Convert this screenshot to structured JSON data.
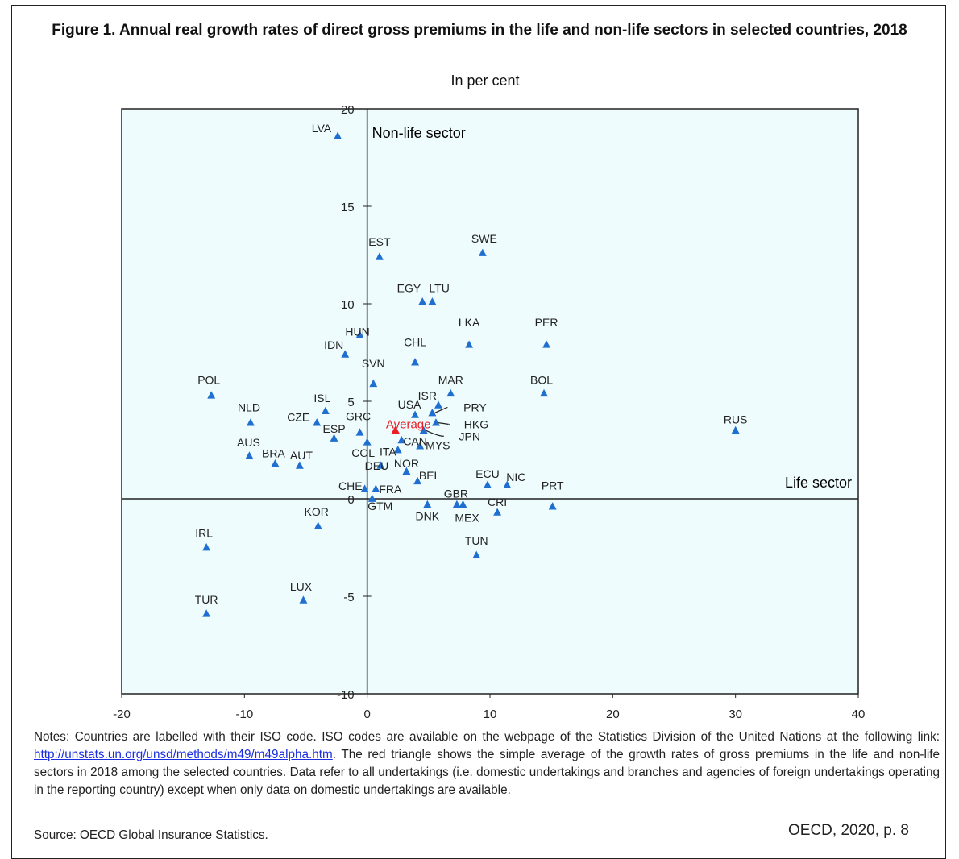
{
  "title": "Figure 1. Annual real growth rates of direct gross premiums in the life and non-life sectors in selected countries, 2018",
  "subtitle": "In per cent",
  "notes": {
    "text_before": "Notes: Countries are labelled with their ISO code. ISO codes are available on the webpage of the Statistics Division of the United Nations at the following link: ",
    "link": "http://unstats.un.org/unsd/methods/m49/m49alpha.htm",
    "text_after": ". The red triangle shows the simple average of the growth rates of gross premiums in the life and non-life sectors in 2018 among the selected countries. Data refer to all undertakings (i.e. domestic undertakings and branches and agencies of foreign undertakings operating in the reporting country) except when only data on domestic undertakings are available."
  },
  "source": "Source: OECD Global Insurance Statistics.",
  "citation": "OECD, 2020, p. 8",
  "colors": {
    "point": "#1f6fd1",
    "average": "#e8202a",
    "plot_bg": "#eefcfd",
    "axis": "#222222"
  },
  "chart_data": {
    "type": "scatter",
    "xlabel": "Life sector",
    "ylabel": "Non-life sector",
    "xlim": [
      -20,
      40
    ],
    "ylim": [
      -10,
      20
    ],
    "x_ticks": [
      "-20",
      "-10",
      "0",
      "10",
      "20",
      "30",
      "40"
    ],
    "y_ticks": [
      "-10",
      "-5",
      "0",
      "5",
      "10",
      "15",
      "20"
    ],
    "grid": false,
    "points": [
      {
        "label": "LVA",
        "x": -2.4,
        "y": 18.6
      },
      {
        "label": "EST",
        "x": 1.0,
        "y": 12.4
      },
      {
        "label": "SWE",
        "x": 9.4,
        "y": 12.6
      },
      {
        "label": "EGY",
        "x": 4.5,
        "y": 10.1
      },
      {
        "label": "LTU",
        "x": 5.3,
        "y": 10.1
      },
      {
        "label": "HUN",
        "x": -0.6,
        "y": 8.4
      },
      {
        "label": "IDN",
        "x": -1.8,
        "y": 7.4
      },
      {
        "label": "LKA",
        "x": 8.3,
        "y": 7.9
      },
      {
        "label": "PER",
        "x": 14.6,
        "y": 7.9
      },
      {
        "label": "CHL",
        "x": 3.9,
        "y": 7.0
      },
      {
        "label": "SVN",
        "x": 0.5,
        "y": 5.9
      },
      {
        "label": "MAR",
        "x": 6.8,
        "y": 5.4
      },
      {
        "label": "BOL",
        "x": 14.4,
        "y": 5.4
      },
      {
        "label": "POL",
        "x": -12.7,
        "y": 5.3
      },
      {
        "label": "ISR",
        "x": 5.8,
        "y": 4.8
      },
      {
        "label": "ISL",
        "x": -3.4,
        "y": 4.5
      },
      {
        "label": "USA",
        "x": 3.9,
        "y": 4.3
      },
      {
        "label": "PRY",
        "x": 5.3,
        "y": 4.4
      },
      {
        "label": "HKG",
        "x": 5.6,
        "y": 3.9
      },
      {
        "label": "NLD",
        "x": -9.5,
        "y": 3.9
      },
      {
        "label": "CZE",
        "x": -4.1,
        "y": 3.9
      },
      {
        "label": "RUS",
        "x": 30.0,
        "y": 3.5
      },
      {
        "label": "GRC",
        "x": -0.6,
        "y": 3.4
      },
      {
        "label": "ESP",
        "x": -2.7,
        "y": 3.1
      },
      {
        "label": "JPN",
        "x": 4.6,
        "y": 3.5
      },
      {
        "label": "CAN",
        "x": 2.8,
        "y": 3.0
      },
      {
        "label": "COL",
        "x": 0.0,
        "y": 2.9
      },
      {
        "label": "MYS",
        "x": 4.3,
        "y": 2.7
      },
      {
        "label": "ITA",
        "x": 2.5,
        "y": 2.5
      },
      {
        "label": "AUS",
        "x": -9.6,
        "y": 2.2
      },
      {
        "label": "BRA",
        "x": -7.5,
        "y": 1.8
      },
      {
        "label": "AUT",
        "x": -5.5,
        "y": 1.7
      },
      {
        "label": "DEU",
        "x": 1.1,
        "y": 1.7
      },
      {
        "label": "NOR",
        "x": 3.2,
        "y": 1.4
      },
      {
        "label": "BEL",
        "x": 4.1,
        "y": 0.9
      },
      {
        "label": "ECU",
        "x": 9.8,
        "y": 0.7
      },
      {
        "label": "NIC",
        "x": 11.4,
        "y": 0.7
      },
      {
        "label": "CHE",
        "x": -0.2,
        "y": 0.5
      },
      {
        "label": "FRA",
        "x": 0.7,
        "y": 0.5
      },
      {
        "label": "GTM",
        "x": 0.4,
        "y": 0.0
      },
      {
        "label": "DNK",
        "x": 4.9,
        "y": -0.3
      },
      {
        "label": "GBR",
        "x": 7.3,
        "y": -0.3
      },
      {
        "label": "MEX",
        "x": 7.8,
        "y": -0.3
      },
      {
        "label": "CRI",
        "x": 10.6,
        "y": -0.7
      },
      {
        "label": "PRT",
        "x": 15.1,
        "y": -0.4
      },
      {
        "label": "KOR",
        "x": -4.0,
        "y": -1.4
      },
      {
        "label": "TUN",
        "x": 8.9,
        "y": -2.9
      },
      {
        "label": "IRL",
        "x": -13.1,
        "y": -2.5
      },
      {
        "label": "LUX",
        "x": -5.2,
        "y": -5.2
      },
      {
        "label": "TUR",
        "x": -13.1,
        "y": -5.9
      }
    ],
    "average": {
      "label": "Average",
      "x": 2.3,
      "y": 3.5
    }
  }
}
